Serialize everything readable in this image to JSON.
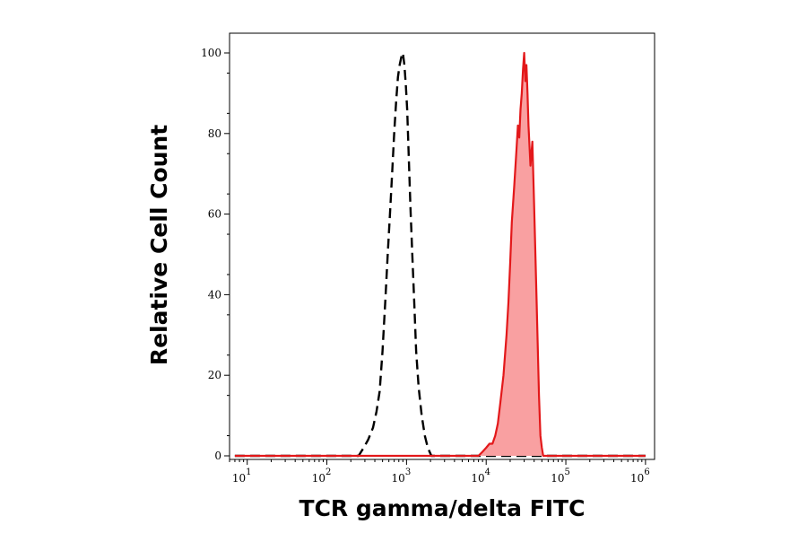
{
  "chart_data": {
    "type": "area",
    "xlabel": "TCR gamma/delta FITC",
    "ylabel": "Relative Cell Count",
    "x_scale": "log",
    "xlim": [
      6,
      1300000
    ],
    "ylim": [
      0,
      103
    ],
    "x_ticks": [
      {
        "value": 10,
        "base": "10",
        "exp": "1"
      },
      {
        "value": 100,
        "base": "10",
        "exp": "2"
      },
      {
        "value": 1000,
        "base": "10",
        "exp": "3"
      },
      {
        "value": 10000,
        "base": "10",
        "exp": "4"
      },
      {
        "value": 100000,
        "base": "10",
        "exp": "5"
      },
      {
        "value": 1000000,
        "base": "10",
        "exp": "6"
      }
    ],
    "y_ticks": [
      0,
      20,
      40,
      60,
      80,
      100
    ],
    "grid": false,
    "legend": "none",
    "series": [
      {
        "style": "dashed-line",
        "color": "#000000",
        "points": [
          [
            7,
            0
          ],
          [
            50,
            0
          ],
          [
            150,
            0
          ],
          [
            250,
            0
          ],
          [
            290,
            2
          ],
          [
            330,
            4
          ],
          [
            380,
            7
          ],
          [
            420,
            11
          ],
          [
            460,
            16
          ],
          [
            500,
            26
          ],
          [
            540,
            38
          ],
          [
            580,
            50
          ],
          [
            620,
            60
          ],
          [
            660,
            70
          ],
          [
            700,
            80
          ],
          [
            740,
            88
          ],
          [
            780,
            94
          ],
          [
            820,
            97
          ],
          [
            860,
            99
          ],
          [
            900,
            100
          ],
          [
            940,
            97
          ],
          [
            980,
            92
          ],
          [
            1020,
            86
          ],
          [
            1060,
            76
          ],
          [
            1120,
            62
          ],
          [
            1180,
            50
          ],
          [
            1250,
            38
          ],
          [
            1320,
            26
          ],
          [
            1420,
            17
          ],
          [
            1550,
            10
          ],
          [
            1700,
            5
          ],
          [
            1850,
            2
          ],
          [
            2050,
            0
          ],
          [
            3000,
            0
          ],
          [
            5000,
            0
          ],
          [
            10000,
            0
          ],
          [
            50000,
            0
          ],
          [
            200000,
            0
          ],
          [
            1000000,
            0
          ]
        ]
      },
      {
        "style": "filled-area",
        "color": "#e3181a",
        "fill": "#f9a0a1",
        "points": [
          [
            7,
            0
          ],
          [
            100,
            0
          ],
          [
            1000,
            0
          ],
          [
            5000,
            0
          ],
          [
            8000,
            0
          ],
          [
            9000,
            1
          ],
          [
            10000,
            2
          ],
          [
            11000,
            3
          ],
          [
            12000,
            3
          ],
          [
            13000,
            5
          ],
          [
            14000,
            8
          ],
          [
            15000,
            13
          ],
          [
            16500,
            20
          ],
          [
            18000,
            30
          ],
          [
            19000,
            38
          ],
          [
            20000,
            48
          ],
          [
            21000,
            58
          ],
          [
            22500,
            67
          ],
          [
            24000,
            76
          ],
          [
            25000,
            82
          ],
          [
            26000,
            79
          ],
          [
            27000,
            86
          ],
          [
            28000,
            90
          ],
          [
            29000,
            96
          ],
          [
            30000,
            100
          ],
          [
            31000,
            93
          ],
          [
            32000,
            97
          ],
          [
            33000,
            90
          ],
          [
            34000,
            82
          ],
          [
            35000,
            77
          ],
          [
            36000,
            72
          ],
          [
            38000,
            78
          ],
          [
            40000,
            62
          ],
          [
            43000,
            38
          ],
          [
            46000,
            15
          ],
          [
            48000,
            5
          ],
          [
            50000,
            2
          ],
          [
            52000,
            0
          ],
          [
            70000,
            0
          ],
          [
            200000,
            0
          ],
          [
            1000000,
            0
          ]
        ]
      }
    ]
  }
}
